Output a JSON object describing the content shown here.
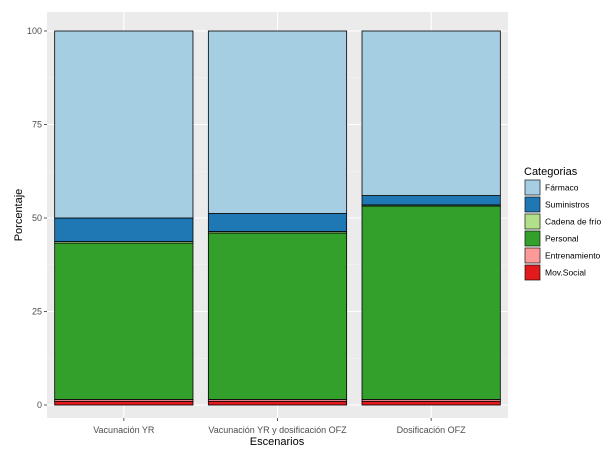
{
  "chart_data": {
    "type": "bar",
    "stacked": true,
    "xlabel": "Escenarios",
    "ylabel": "Porcentaje",
    "ylim": [
      0,
      100
    ],
    "yticks": [
      0,
      25,
      50,
      75,
      100
    ],
    "categories": [
      "Vacunación YR",
      "Vacunación YR y dosificación OFZ",
      "Dosificación OFZ"
    ],
    "series": [
      {
        "name": "Mov.Social",
        "color": "#e31a1c",
        "values": [
          1.0,
          1.0,
          1.0
        ]
      },
      {
        "name": "Entrenamiento",
        "color": "#fb9a99",
        "values": [
          0.5,
          0.5,
          0.5
        ]
      },
      {
        "name": "Personal",
        "color": "#33a02c",
        "values": [
          41.8,
          44.5,
          51.7
        ]
      },
      {
        "name": "Cadena de frío",
        "color": "#b2df8a",
        "values": [
          0.4,
          0.4,
          0.3
        ]
      },
      {
        "name": "Suministros",
        "color": "#1f78b4",
        "values": [
          6.3,
          4.8,
          2.5
        ]
      },
      {
        "name": "Fármaco",
        "color": "#a6cee3",
        "values": [
          50.0,
          48.8,
          44.0
        ]
      }
    ],
    "legend": {
      "title": "Categorias",
      "placement": "right",
      "order": [
        "Fármaco",
        "Suministros",
        "Cadena de frío",
        "Personal",
        "Entrenamiento",
        "Mov.Social"
      ]
    },
    "panel_background": "#ebebeb",
    "grid": true
  }
}
